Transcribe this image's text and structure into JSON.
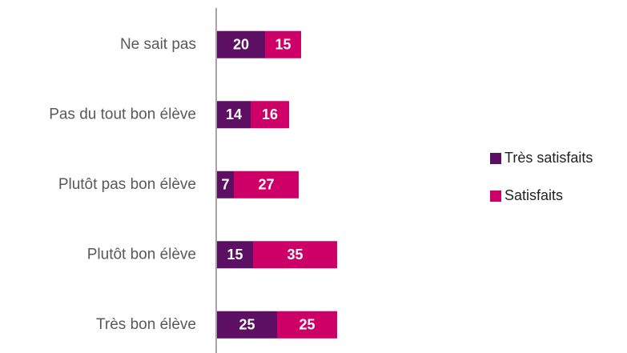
{
  "chart_data": {
    "type": "stacked-barh",
    "categories": [
      "Ne sait pas",
      "Pas du tout bon élève",
      "Plutôt pas bon élève",
      "Plutôt bon élève",
      "Très bon élève"
    ],
    "series": [
      {
        "name": "Très satisfaits",
        "color": "#5c0f63",
        "values": [
          20,
          14,
          7,
          15,
          25
        ]
      },
      {
        "name": "Satisfaits",
        "color": "#cc0066",
        "values": [
          15,
          16,
          27,
          35,
          25
        ]
      }
    ],
    "xlim": [
      0,
      100
    ],
    "legend": "right"
  }
}
